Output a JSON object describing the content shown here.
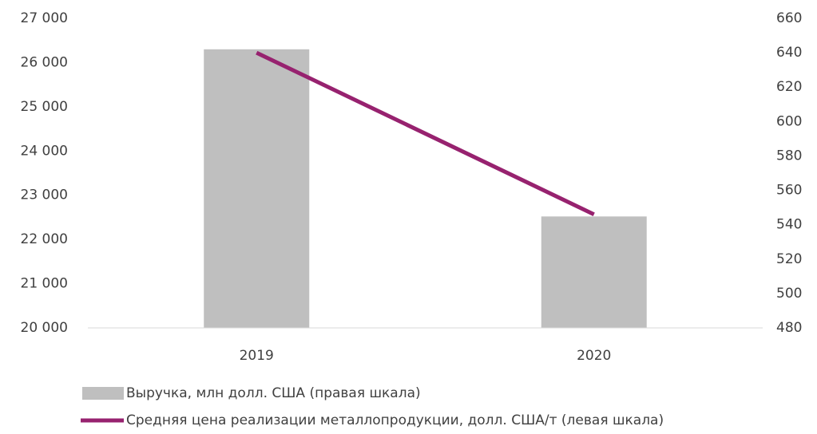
{
  "chart_data": {
    "type": "bar_line",
    "categories": [
      "2019",
      "2020"
    ],
    "series": [
      {
        "name": "Выручка, млн долл. США (правая шкала)",
        "type": "bar",
        "color": "#bfbfbf",
        "axis": "y",
        "values": [
          26300,
          22520
        ]
      },
      {
        "name": "Средняя цена реализации металлопродукции, долл. США/т (левая шкала)",
        "type": "line",
        "color": "#97226f",
        "axis": "y2",
        "values": [
          640,
          546
        ]
      }
    ],
    "ylim": [
      20000,
      27000
    ],
    "yticks": [
      {
        "value": 20000,
        "label": "20 000"
      },
      {
        "value": 21000,
        "label": "21 000"
      },
      {
        "value": 22000,
        "label": "22 000"
      },
      {
        "value": 23000,
        "label": "23 000"
      },
      {
        "value": 24000,
        "label": "24 000"
      },
      {
        "value": 25000,
        "label": "25 000"
      },
      {
        "value": 26000,
        "label": "26 000"
      },
      {
        "value": 27000,
        "label": "27 000"
      }
    ],
    "y2lim": [
      480,
      660
    ],
    "y2ticks": [
      480,
      500,
      520,
      540,
      560,
      580,
      600,
      620,
      640,
      660
    ],
    "grid": false,
    "legend": "bottom"
  }
}
